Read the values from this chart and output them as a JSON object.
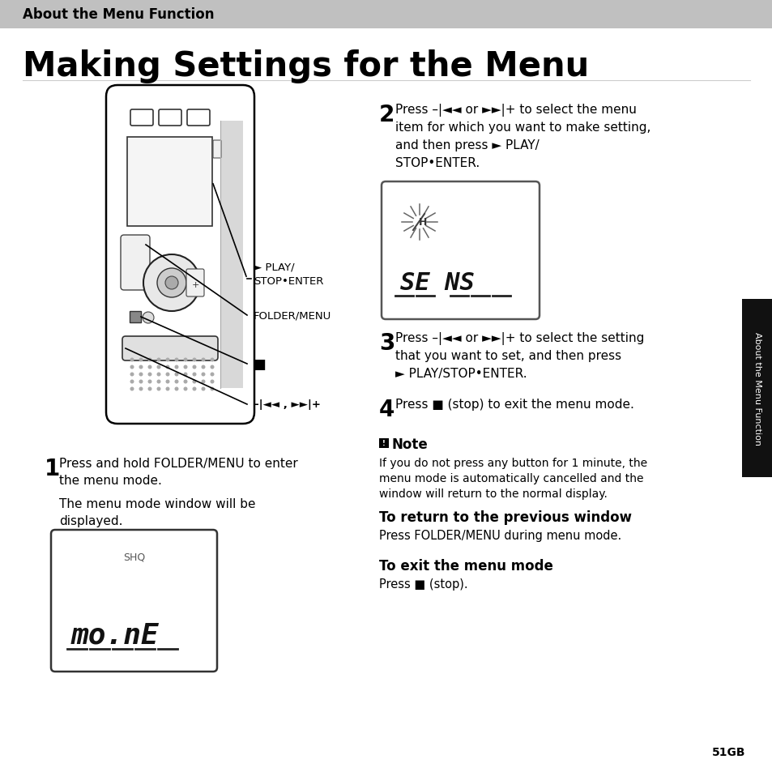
{
  "bg_color": "#ffffff",
  "header_bg": "#c0c0c0",
  "header_text": "About the Menu Function",
  "header_text_color": "#000000",
  "title": "Making Settings for the Menu",
  "title_color": "#000000",
  "page_number": "51",
  "sidebar_text": "About the Menu Function",
  "sidebar_bg": "#1a1a1a",
  "label_play_stop": "► PLAY/\nSTOP•ENTER",
  "label_folder_menu": "FOLDER/MENU",
  "label_stop": "■",
  "label_nav": "–|◄◄ , ►►|+"
}
